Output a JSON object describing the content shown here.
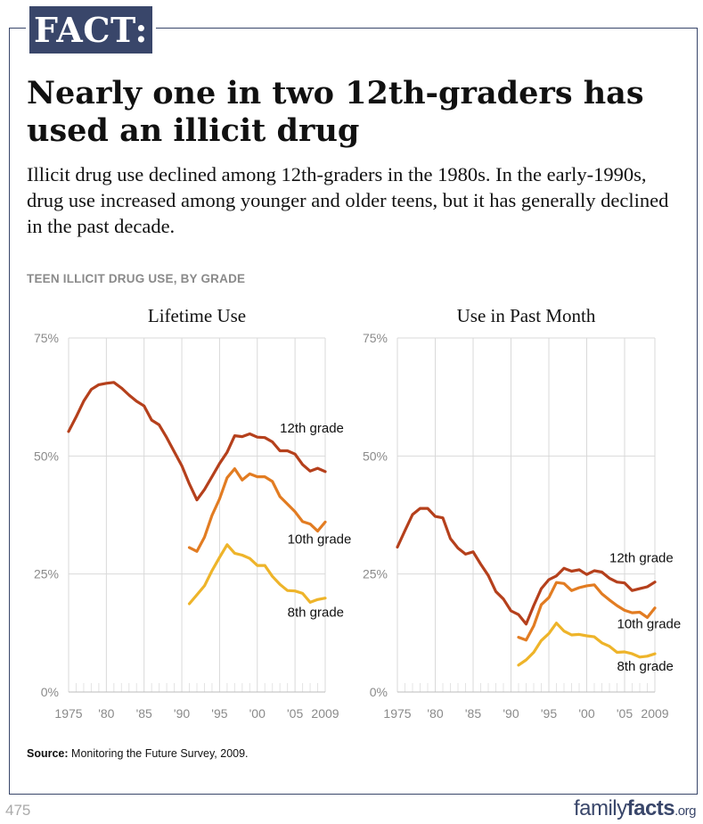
{
  "header": {
    "badge": "FACT:",
    "headline": "Nearly one in two 12th-graders has used an illicit drug",
    "subhead": "Illicit drug use declined among 12th-graders in the 1980s. In the early-1990s, drug use increased among younger and older teens, but it has generally declined in the past decade."
  },
  "section_label": "TEEN ILLICIT DRUG USE, BY GRADE",
  "source": {
    "label": "Source:",
    "text": "Monitoring the Future Survey, 2009."
  },
  "page_number": "475",
  "brand": {
    "part1": "family",
    "part2": "facts",
    "part3": ".org"
  },
  "colors": {
    "grade12": "#b5401c",
    "grade10": "#e27c22",
    "grade8": "#eeb42a",
    "navy": "#39466a",
    "grid": "#d9d9d9",
    "axis_text": "#8a8a8a"
  },
  "chart_data": [
    {
      "type": "line",
      "title": "Lifetime Use",
      "xlim": [
        1975,
        2009
      ],
      "ylim": [
        0,
        75
      ],
      "yticks": [
        0,
        25,
        50,
        75
      ],
      "ytick_labels": [
        "0%",
        "25%",
        "50%",
        "75%"
      ],
      "xticks": [
        1975,
        1980,
        1985,
        1990,
        1995,
        2000,
        2005,
        2009
      ],
      "xtick_labels": [
        "1975",
        "'80",
        "'85",
        "'90",
        "'95",
        "'00",
        "'05",
        "2009"
      ],
      "series": [
        {
          "name": "12th grade",
          "x": [
            1975,
            1976,
            1977,
            1978,
            1979,
            1980,
            1981,
            1982,
            1983,
            1984,
            1985,
            1986,
            1987,
            1988,
            1989,
            1990,
            1991,
            1992,
            1993,
            1994,
            1995,
            1996,
            1997,
            1998,
            1999,
            2000,
            2001,
            2002,
            2003,
            2004,
            2005,
            2006,
            2007,
            2008,
            2009
          ],
          "values": [
            55.2,
            58.3,
            61.6,
            64.1,
            65.1,
            65.4,
            65.6,
            64.4,
            62.9,
            61.6,
            60.6,
            57.6,
            56.6,
            53.9,
            50.9,
            47.9,
            44.1,
            40.7,
            42.9,
            45.6,
            48.4,
            50.8,
            54.3,
            54.1,
            54.7,
            54.0,
            53.9,
            53.0,
            51.1,
            51.1,
            50.4,
            48.2,
            46.8,
            47.4,
            46.7
          ],
          "label_x": 2003,
          "label_y": 55
        },
        {
          "name": "10th grade",
          "x": [
            1991,
            1992,
            1993,
            1994,
            1995,
            1996,
            1997,
            1998,
            1999,
            2000,
            2001,
            2002,
            2003,
            2004,
            2005,
            2006,
            2007,
            2008,
            2009
          ],
          "values": [
            30.6,
            29.8,
            32.8,
            37.4,
            40.9,
            45.4,
            47.3,
            44.9,
            46.2,
            45.6,
            45.6,
            44.6,
            41.4,
            39.8,
            38.2,
            36.1,
            35.6,
            34.1,
            36.0
          ],
          "label_x": 2004,
          "label_y": 31.5
        },
        {
          "name": "8th grade",
          "x": [
            1991,
            1992,
            1993,
            1994,
            1995,
            1996,
            1997,
            1998,
            1999,
            2000,
            2001,
            2002,
            2003,
            2004,
            2005,
            2006,
            2007,
            2008,
            2009
          ],
          "values": [
            18.7,
            20.6,
            22.5,
            25.7,
            28.5,
            31.2,
            29.4,
            29.0,
            28.3,
            26.8,
            26.8,
            24.5,
            22.8,
            21.5,
            21.4,
            20.9,
            19.0,
            19.6,
            19.9
          ],
          "label_x": 2004,
          "label_y": 16
        }
      ]
    },
    {
      "type": "line",
      "title": "Use in Past Month",
      "xlim": [
        1975,
        2009
      ],
      "ylim": [
        0,
        75
      ],
      "yticks": [
        0,
        25,
        50,
        75
      ],
      "ytick_labels": [
        "0%",
        "25%",
        "50%",
        "75%"
      ],
      "xticks": [
        1975,
        1980,
        1985,
        1990,
        1995,
        2000,
        2005,
        2009
      ],
      "xtick_labels": [
        "1975",
        "'80",
        "'85",
        "'90",
        "'95",
        "'00",
        "'05",
        "2009"
      ],
      "series": [
        {
          "name": "12th grade",
          "x": [
            1975,
            1976,
            1977,
            1978,
            1979,
            1980,
            1981,
            1982,
            1983,
            1984,
            1985,
            1986,
            1987,
            1988,
            1989,
            1990,
            1991,
            1992,
            1993,
            1994,
            1995,
            1996,
            1997,
            1998,
            1999,
            2000,
            2001,
            2002,
            2003,
            2004,
            2005,
            2006,
            2007,
            2008,
            2009
          ],
          "values": [
            30.7,
            34.2,
            37.6,
            38.9,
            38.9,
            37.2,
            36.9,
            32.5,
            30.5,
            29.2,
            29.7,
            27.1,
            24.7,
            21.3,
            19.7,
            17.2,
            16.4,
            14.4,
            18.3,
            21.9,
            23.8,
            24.6,
            26.2,
            25.6,
            25.9,
            24.9,
            25.7,
            25.4,
            24.1,
            23.3,
            23.1,
            21.5,
            21.9,
            22.3,
            23.3
          ],
          "label_x": 2003,
          "label_y": 27.5
        },
        {
          "name": "10th grade",
          "x": [
            1991,
            1992,
            1993,
            1994,
            1995,
            1996,
            1997,
            1998,
            1999,
            2000,
            2001,
            2002,
            2003,
            2004,
            2005,
            2006,
            2007,
            2008,
            2009
          ],
          "values": [
            11.6,
            11.0,
            14.0,
            18.5,
            20.0,
            23.2,
            23.0,
            21.5,
            22.1,
            22.5,
            22.7,
            20.8,
            19.5,
            18.3,
            17.3,
            16.8,
            16.9,
            15.8,
            17.8
          ],
          "label_x": 2004,
          "label_y": 13.5
        },
        {
          "name": "8th grade",
          "x": [
            1991,
            1992,
            1993,
            1994,
            1995,
            1996,
            1997,
            1998,
            1999,
            2000,
            2001,
            2002,
            2003,
            2004,
            2005,
            2006,
            2007,
            2008,
            2009
          ],
          "values": [
            5.7,
            6.8,
            8.4,
            10.9,
            12.4,
            14.6,
            12.9,
            12.1,
            12.2,
            11.9,
            11.7,
            10.4,
            9.7,
            8.4,
            8.5,
            8.1,
            7.4,
            7.6,
            8.1
          ],
          "label_x": 2004,
          "label_y": 4.5
        }
      ]
    }
  ]
}
